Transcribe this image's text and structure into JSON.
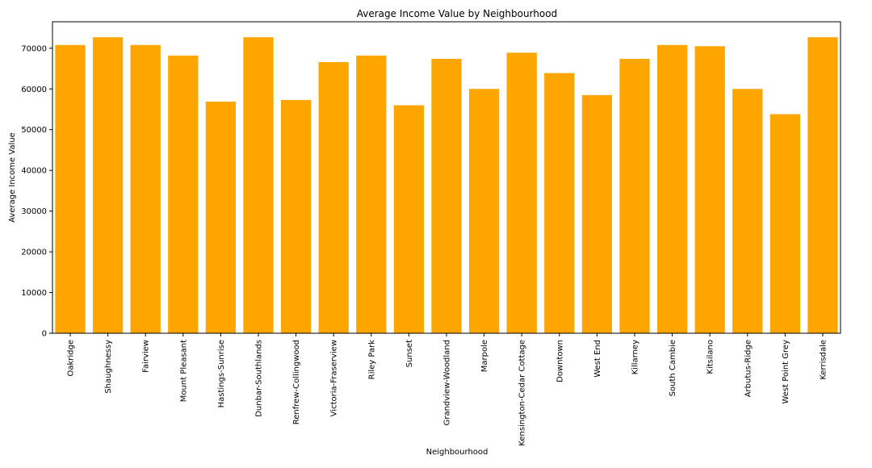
{
  "chart_data": {
    "type": "bar",
    "title": "Average Income Value by Neighbourhood",
    "xlabel": "Neighbourhood",
    "ylabel": "Average Income Value",
    "ylim": [
      0,
      76500
    ],
    "yticks": [
      0,
      10000,
      20000,
      30000,
      40000,
      50000,
      60000,
      70000
    ],
    "grid": false,
    "bar_color": "#ffa500",
    "categories": [
      "Oakridge",
      "Shaughnessy",
      "Fairview",
      "Mount Pleasant",
      "Hastings-Sunrise",
      "Dunbar-Southlands",
      "Renfrew-Collingwood",
      "Victoria-Fraserview",
      "Riley Park",
      "Sunset",
      "Grandview-Woodland",
      "Marpole",
      "Kensington-Cedar Cottage",
      "Downtown",
      "West End",
      "Killarney",
      "South Cambie",
      "Kitsilano",
      "Arbutus-Ridge",
      "West Point Grey",
      "Kerrisdale"
    ],
    "values": [
      70800,
      72700,
      70800,
      68200,
      56900,
      72700,
      57300,
      66600,
      68200,
      56000,
      67400,
      60000,
      68900,
      63900,
      58500,
      67400,
      70800,
      70500,
      60000,
      53800,
      72700
    ]
  }
}
